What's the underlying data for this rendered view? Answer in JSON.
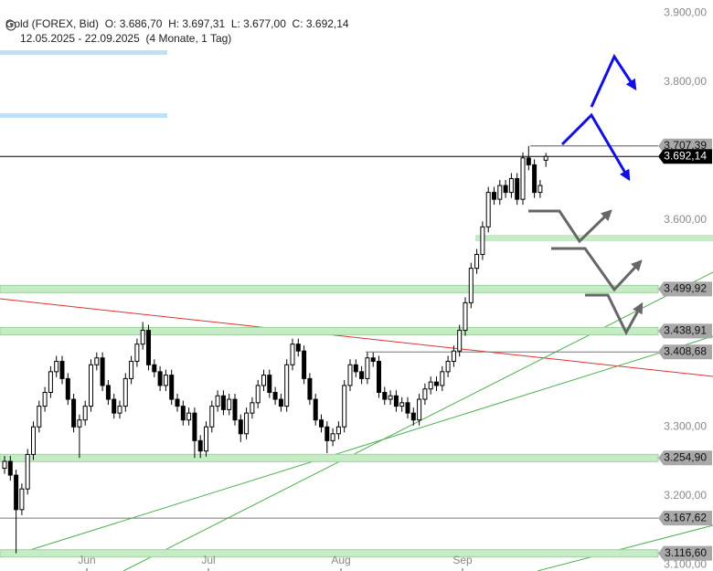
{
  "header": {
    "symbol": "Gold (FOREX, Bid)",
    "open": "O: 3.686,70",
    "high": "H: 3.697,31",
    "low": "L: 3.677,00",
    "close": "C: 3.692,14",
    "range": "12.05.2025 - 22.09.2025",
    "period": "(4 Monate, 1 Tag)"
  },
  "chart_data": {
    "type": "candlestick",
    "x_labels": [
      "Jun",
      "Jul",
      "Aug",
      "Sep"
    ],
    "open": [
      3240,
      3250,
      3230,
      3180,
      3210,
      3260,
      3300,
      3330,
      3350,
      3380,
      3395,
      3370,
      3340,
      3300,
      3310,
      3330,
      3390,
      3400,
      3360,
      3340,
      3320,
      3330,
      3370,
      3395,
      3420,
      3440,
      3390,
      3380,
      3360,
      3375,
      3340,
      3330,
      3310,
      3320,
      3280,
      3265,
      3300,
      3330,
      3345,
      3325,
      3340,
      3310,
      3290,
      3320,
      3335,
      3360,
      3375,
      3350,
      3340,
      3330,
      3390,
      3420,
      3410,
      3370,
      3340,
      3310,
      3300,
      3280,
      3290,
      3300,
      3360,
      3390,
      3380,
      3370,
      3400,
      3395,
      3350,
      3340,
      3345,
      3330,
      3335,
      3320,
      3310,
      3340,
      3355,
      3365,
      3360,
      3380,
      3395,
      3410,
      3440,
      3480,
      3530,
      3550,
      3590,
      3640,
      3630,
      3650,
      3640,
      3660,
      3630,
      3690,
      3680,
      3640,
      3686.7
    ],
    "high": [
      3258,
      3258,
      3238,
      3218,
      3268,
      3308,
      3338,
      3358,
      3388,
      3403,
      3403,
      3378,
      3348,
      3318,
      3338,
      3398,
      3408,
      3408,
      3368,
      3348,
      3338,
      3378,
      3403,
      3428,
      3452,
      3448,
      3398,
      3388,
      3383,
      3383,
      3348,
      3338,
      3328,
      3328,
      3288,
      3308,
      3338,
      3353,
      3353,
      3348,
      3348,
      3318,
      3328,
      3343,
      3368,
      3383,
      3383,
      3358,
      3348,
      3398,
      3428,
      3428,
      3418,
      3378,
      3348,
      3318,
      3308,
      3298,
      3308,
      3368,
      3398,
      3398,
      3388,
      3408,
      3408,
      3403,
      3358,
      3353,
      3353,
      3343,
      3343,
      3328,
      3348,
      3363,
      3373,
      3373,
      3388,
      3403,
      3418,
      3448,
      3488,
      3538,
      3558,
      3598,
      3648,
      3648,
      3658,
      3658,
      3668,
      3668,
      3698,
      3707.39,
      3688,
      3658,
      3697.31
    ],
    "low": [
      3232,
      3222,
      3116.6,
      3172,
      3202,
      3252,
      3292,
      3322,
      3342,
      3372,
      3362,
      3332,
      3292,
      3255,
      3302,
      3322,
      3382,
      3352,
      3332,
      3312,
      3312,
      3322,
      3362,
      3387,
      3412,
      3382,
      3372,
      3352,
      3352,
      3332,
      3322,
      3302,
      3302,
      3255,
      3255,
      3257,
      3292,
      3322,
      3317,
      3317,
      3302,
      3278,
      3282,
      3312,
      3327,
      3352,
      3342,
      3332,
      3322,
      3322,
      3382,
      3402,
      3362,
      3332,
      3302,
      3292,
      3262,
      3272,
      3282,
      3292,
      3352,
      3372,
      3362,
      3362,
      3387,
      3342,
      3332,
      3332,
      3322,
      3322,
      3312,
      3302,
      3302,
      3332,
      3347,
      3352,
      3352,
      3372,
      3387,
      3402,
      3432,
      3472,
      3522,
      3542,
      3582,
      3622,
      3622,
      3632,
      3632,
      3622,
      3622,
      3672,
      3632,
      3632,
      3677
    ],
    "close": [
      3250,
      3230,
      3180,
      3210,
      3260,
      3300,
      3330,
      3350,
      3380,
      3395,
      3370,
      3340,
      3300,
      3310,
      3330,
      3390,
      3400,
      3360,
      3340,
      3320,
      3330,
      3370,
      3395,
      3420,
      3440,
      3390,
      3380,
      3360,
      3375,
      3340,
      3330,
      3310,
      3320,
      3280,
      3265,
      3300,
      3330,
      3345,
      3325,
      3340,
      3310,
      3290,
      3320,
      3335,
      3360,
      3375,
      3350,
      3340,
      3330,
      3390,
      3420,
      3410,
      3370,
      3340,
      3310,
      3300,
      3280,
      3290,
      3300,
      3360,
      3390,
      3380,
      3370,
      3400,
      3395,
      3350,
      3340,
      3345,
      3330,
      3335,
      3320,
      3310,
      3340,
      3355,
      3365,
      3360,
      3380,
      3395,
      3410,
      3440,
      3480,
      3530,
      3550,
      3590,
      3640,
      3630,
      3650,
      3640,
      3660,
      3630,
      3690,
      3680,
      3640,
      3650,
      3692.14
    ],
    "ylim": [
      3091,
      3919
    ],
    "yticks": [
      {
        "value": 3900,
        "label": "3.900,00"
      },
      {
        "value": 3800,
        "label": "3.800,00"
      },
      {
        "value": 3600,
        "label": "3.600,00"
      },
      {
        "value": 3300,
        "label": "3.300,00"
      },
      {
        "value": 3200,
        "label": "3.200,00"
      },
      {
        "value": 3100,
        "label": "3.100,00"
      }
    ],
    "levels": [
      {
        "value": 3707.39,
        "label": "3.707,39",
        "band": false,
        "color": "#555555"
      },
      {
        "value": 3692.14,
        "label": "3.692,14",
        "band": false,
        "color": "#000000"
      },
      {
        "value": 3499.92,
        "label": "3.499,92",
        "band": true,
        "color": "#9ad49a"
      },
      {
        "value": 3438.91,
        "label": "3.438,91",
        "band": true,
        "color": "#9ad49a"
      },
      {
        "value": 3408.68,
        "label": "3.408,68",
        "band": false,
        "color": "#777777"
      },
      {
        "value": 3254.9,
        "label": "3.254,90",
        "band": true,
        "color": "#9ad49a"
      },
      {
        "value": 3167.62,
        "label": "3.167,62",
        "band": false,
        "color": "#777777"
      },
      {
        "value": 3116.6,
        "label": "3.116,60",
        "band": true,
        "color": "#9ad49a"
      }
    ]
  }
}
